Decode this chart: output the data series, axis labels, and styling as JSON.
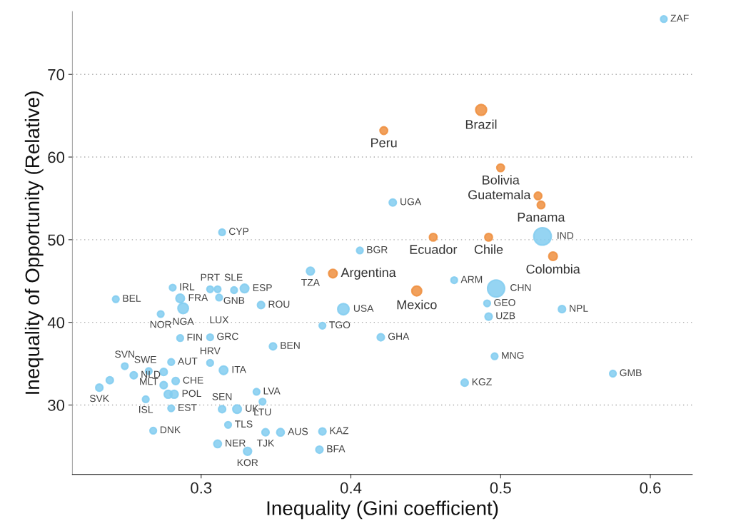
{
  "chart_data": {
    "type": "bubble",
    "xlabel": "Inequality (Gini coefficient)",
    "ylabel": "Inequality of Opportunity (Relative)",
    "xlim": [
      0.214,
      0.628
    ],
    "ylim": [
      21.6,
      77.6
    ],
    "xticks": [
      0.3,
      0.4,
      0.5,
      0.6
    ],
    "yticks": [
      30,
      40,
      50,
      60,
      70
    ],
    "grid": "y",
    "series": [
      {
        "color": "#83cdf0",
        "x": [
          0.314,
          0.243,
          0.281,
          0.286,
          0.306,
          0.311,
          0.322,
          0.329,
          0.312,
          0.288,
          0.273,
          0.34,
          0.286,
          0.306,
          0.348,
          0.373,
          0.249,
          0.265,
          0.28,
          0.306,
          0.315,
          0.275,
          0.255,
          0.239,
          0.232,
          0.283,
          0.275,
          0.278,
          0.282,
          0.263,
          0.337,
          0.341,
          0.28,
          0.314,
          0.324,
          0.318,
          0.343,
          0.353,
          0.268,
          0.311,
          0.331,
          0.381,
          0.379,
          0.395,
          0.381,
          0.42,
          0.428,
          0.528,
          0.406,
          0.469,
          0.497,
          0.491,
          0.541,
          0.492,
          0.496,
          0.476,
          0.575,
          0.609
        ],
        "values": [
          50.9,
          42.8,
          44.2,
          42.9,
          44.0,
          44.0,
          43.9,
          44.1,
          43.0,
          41.7,
          41.0,
          42.1,
          38.1,
          38.2,
          37.1,
          46.2,
          34.7,
          34.1,
          35.2,
          35.1,
          34.2,
          34.0,
          33.6,
          33.0,
          32.1,
          32.9,
          32.4,
          31.3,
          31.3,
          30.7,
          31.6,
          30.4,
          29.6,
          29.5,
          29.5,
          27.6,
          26.7,
          26.7,
          26.9,
          25.3,
          24.4,
          26.8,
          24.6,
          41.6,
          39.6,
          38.2,
          54.5,
          50.4,
          48.7,
          45.1,
          44.1,
          42.3,
          41.6,
          40.7,
          35.9,
          32.7,
          33.8,
          76.7
        ],
        "sizes": [
          0.14,
          0.14,
          0.14,
          0.24,
          0.14,
          0.14,
          0.14,
          0.24,
          0.14,
          0.36,
          0.14,
          0.17,
          0.14,
          0.14,
          0.17,
          0.21,
          0.14,
          0.14,
          0.14,
          0.14,
          0.24,
          0.17,
          0.17,
          0.17,
          0.17,
          0.17,
          0.17,
          0.21,
          0.21,
          0.14,
          0.14,
          0.14,
          0.14,
          0.17,
          0.24,
          0.14,
          0.17,
          0.19,
          0.14,
          0.19,
          0.21,
          0.17,
          0.17,
          0.42,
          0.14,
          0.17,
          0.17,
          1,
          0.14,
          0.14,
          0.95,
          0.14,
          0.17,
          0.17,
          0.14,
          0.17,
          0.14,
          0.14
        ]
      },
      {
        "color": "#ee8f3f",
        "x": [
          0.487,
          0.422,
          0.5,
          0.525,
          0.527,
          0.455,
          0.492,
          0.535,
          0.388,
          0.444
        ],
        "values": [
          65.7,
          63.2,
          58.7,
          55.3,
          54.2,
          50.3,
          50.3,
          48.0,
          45.9,
          43.8
        ],
        "sizes": [
          0.39,
          0.19,
          0.19,
          0.19,
          0.19,
          0.19,
          0.19,
          0.24,
          0.24,
          0.32
        ]
      }
    ],
    "annotations": [
      {
        "text": "CYP",
        "x": 0.314,
        "y": 50.9
      },
      {
        "text": "BEL",
        "x": 0.243,
        "y": 42.8
      },
      {
        "text": "IRL",
        "x": 0.281,
        "y": 44.2
      },
      {
        "text": "FRA",
        "x": 0.286,
        "y": 42.9
      },
      {
        "text": "PRT",
        "x": 0.306,
        "y": 44.0
      },
      {
        "text": "SLE",
        "x": 0.311,
        "y": 44.0
      },
      {
        "text": "GNB",
        "x": 0.322,
        "y": 43.9
      },
      {
        "text": "ESP",
        "x": 0.329,
        "y": 44.1
      },
      {
        "text": "LUX",
        "x": 0.312,
        "y": 43.0
      },
      {
        "text": "NGA",
        "x": 0.288,
        "y": 41.7
      },
      {
        "text": "NOR",
        "x": 0.273,
        "y": 41.0
      },
      {
        "text": "ROU",
        "x": 0.34,
        "y": 42.1
      },
      {
        "text": "FIN",
        "x": 0.286,
        "y": 38.1
      },
      {
        "text": "GRC",
        "x": 0.306,
        "y": 38.2
      },
      {
        "text": "BEN",
        "x": 0.348,
        "y": 37.1
      },
      {
        "text": "TZA",
        "x": 0.373,
        "y": 46.2
      },
      {
        "text": "SVN",
        "x": 0.249,
        "y": 34.7
      },
      {
        "text": "MLT",
        "x": 0.265,
        "y": 34.1
      },
      {
        "text": "AUT",
        "x": 0.28,
        "y": 35.2
      },
      {
        "text": "HRV",
        "x": 0.306,
        "y": 35.1
      },
      {
        "text": "ITA",
        "x": 0.315,
        "y": 34.2
      },
      {
        "text": "SWE",
        "x": 0.275,
        "y": 34.0
      },
      {
        "text": "NLD",
        "x": 0.255,
        "y": 33.6
      },
      {
        "text": "SVK",
        "x": 0.232,
        "y": 32.1
      },
      {
        "text": "CHE",
        "x": 0.283,
        "y": 32.9
      },
      {
        "text": "POL",
        "x": 0.282,
        "y": 31.3
      },
      {
        "text": "ISL",
        "x": 0.263,
        "y": 30.7
      },
      {
        "text": "LVA",
        "x": 0.337,
        "y": 31.6
      },
      {
        "text": "LTU",
        "x": 0.341,
        "y": 30.4
      },
      {
        "text": "EST",
        "x": 0.28,
        "y": 29.6
      },
      {
        "text": "SEN",
        "x": 0.314,
        "y": 29.5
      },
      {
        "text": "UK",
        "x": 0.324,
        "y": 29.5
      },
      {
        "text": "TLS",
        "x": 0.318,
        "y": 27.6
      },
      {
        "text": "TJK",
        "x": 0.343,
        "y": 26.7
      },
      {
        "text": "AUS",
        "x": 0.353,
        "y": 26.7
      },
      {
        "text": "DNK",
        "x": 0.268,
        "y": 26.9
      },
      {
        "text": "NER",
        "x": 0.311,
        "y": 25.3
      },
      {
        "text": "KOR",
        "x": 0.331,
        "y": 24.4
      },
      {
        "text": "KAZ",
        "x": 0.381,
        "y": 26.8
      },
      {
        "text": "BFA",
        "x": 0.379,
        "y": 24.6
      },
      {
        "text": "USA",
        "x": 0.395,
        "y": 41.6
      },
      {
        "text": "TGO",
        "x": 0.381,
        "y": 39.6
      },
      {
        "text": "GHA",
        "x": 0.42,
        "y": 38.2
      },
      {
        "text": "UGA",
        "x": 0.428,
        "y": 54.5
      },
      {
        "text": "IND",
        "x": 0.528,
        "y": 50.4
      },
      {
        "text": "BGR",
        "x": 0.406,
        "y": 48.7
      },
      {
        "text": "ARM",
        "x": 0.469,
        "y": 45.1
      },
      {
        "text": "CHN",
        "x": 0.497,
        "y": 44.1
      },
      {
        "text": "GEO",
        "x": 0.491,
        "y": 42.3
      },
      {
        "text": "NPL",
        "x": 0.541,
        "y": 41.6
      },
      {
        "text": "UZB",
        "x": 0.492,
        "y": 40.7
      },
      {
        "text": "MNG",
        "x": 0.496,
        "y": 35.9
      },
      {
        "text": "KGZ",
        "x": 0.476,
        "y": 32.7
      },
      {
        "text": "GMB",
        "x": 0.575,
        "y": 33.8
      },
      {
        "text": "ZAF",
        "x": 0.609,
        "y": 76.7
      },
      {
        "text": "Brazil",
        "x": 0.487,
        "y": 65.7
      },
      {
        "text": "Peru",
        "x": 0.422,
        "y": 63.2
      },
      {
        "text": "Bolivia",
        "x": 0.5,
        "y": 58.7
      },
      {
        "text": "Guatemala",
        "x": 0.525,
        "y": 55.3
      },
      {
        "text": "Panama",
        "x": 0.527,
        "y": 54.2
      },
      {
        "text": "Ecuador",
        "x": 0.455,
        "y": 50.3
      },
      {
        "text": "Chile",
        "x": 0.492,
        "y": 50.3
      },
      {
        "text": "Colombia",
        "x": 0.535,
        "y": 48.0
      },
      {
        "text": "Argentina",
        "x": 0.388,
        "y": 45.9
      },
      {
        "text": "Mexico",
        "x": 0.444,
        "y": 43.8
      }
    ]
  }
}
